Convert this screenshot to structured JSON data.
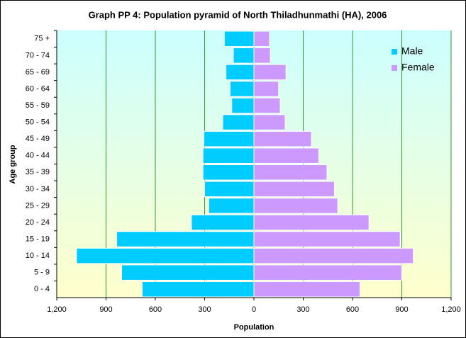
{
  "chart_data": {
    "type": "pyramid",
    "title": "Graph PP 4: Population pyramid of North Thiladhunmathi (HA), 2006",
    "x_label": "Population",
    "y_label": "Age group",
    "categories": [
      "75 +",
      "70 - 74",
      "65 - 69",
      "60 - 64",
      "55 - 59",
      "50 - 54",
      "45 - 49",
      "40 - 44",
      "35 - 39",
      "30 - 34",
      "25 - 29",
      "20 - 24",
      "15 - 19",
      "10 - 14",
      "5 - 9",
      "0 - 4"
    ],
    "series": [
      {
        "name": "Male",
        "color": "#00ccff",
        "values": [
          -180,
          -125,
          -170,
          -145,
          -135,
          -190,
          -305,
          -310,
          -310,
          -300,
          -275,
          -380,
          -835,
          -1080,
          -805,
          -680
        ]
      },
      {
        "name": "Female",
        "color": "#cc99ff",
        "values": [
          95,
          100,
          195,
          150,
          160,
          190,
          350,
          395,
          445,
          490,
          510,
          700,
          890,
          970,
          900,
          645
        ]
      }
    ],
    "xlim": [
      -1200,
      1200
    ],
    "xticks": [
      {
        "value": -1200,
        "label": "1,200"
      },
      {
        "value": -900,
        "label": "900"
      },
      {
        "value": -600,
        "label": "600"
      },
      {
        "value": -300,
        "label": "300"
      },
      0,
      300,
      600,
      900,
      {
        "value": 1200,
        "label": "1,200"
      }
    ],
    "grid": true,
    "legend": "top-right"
  }
}
